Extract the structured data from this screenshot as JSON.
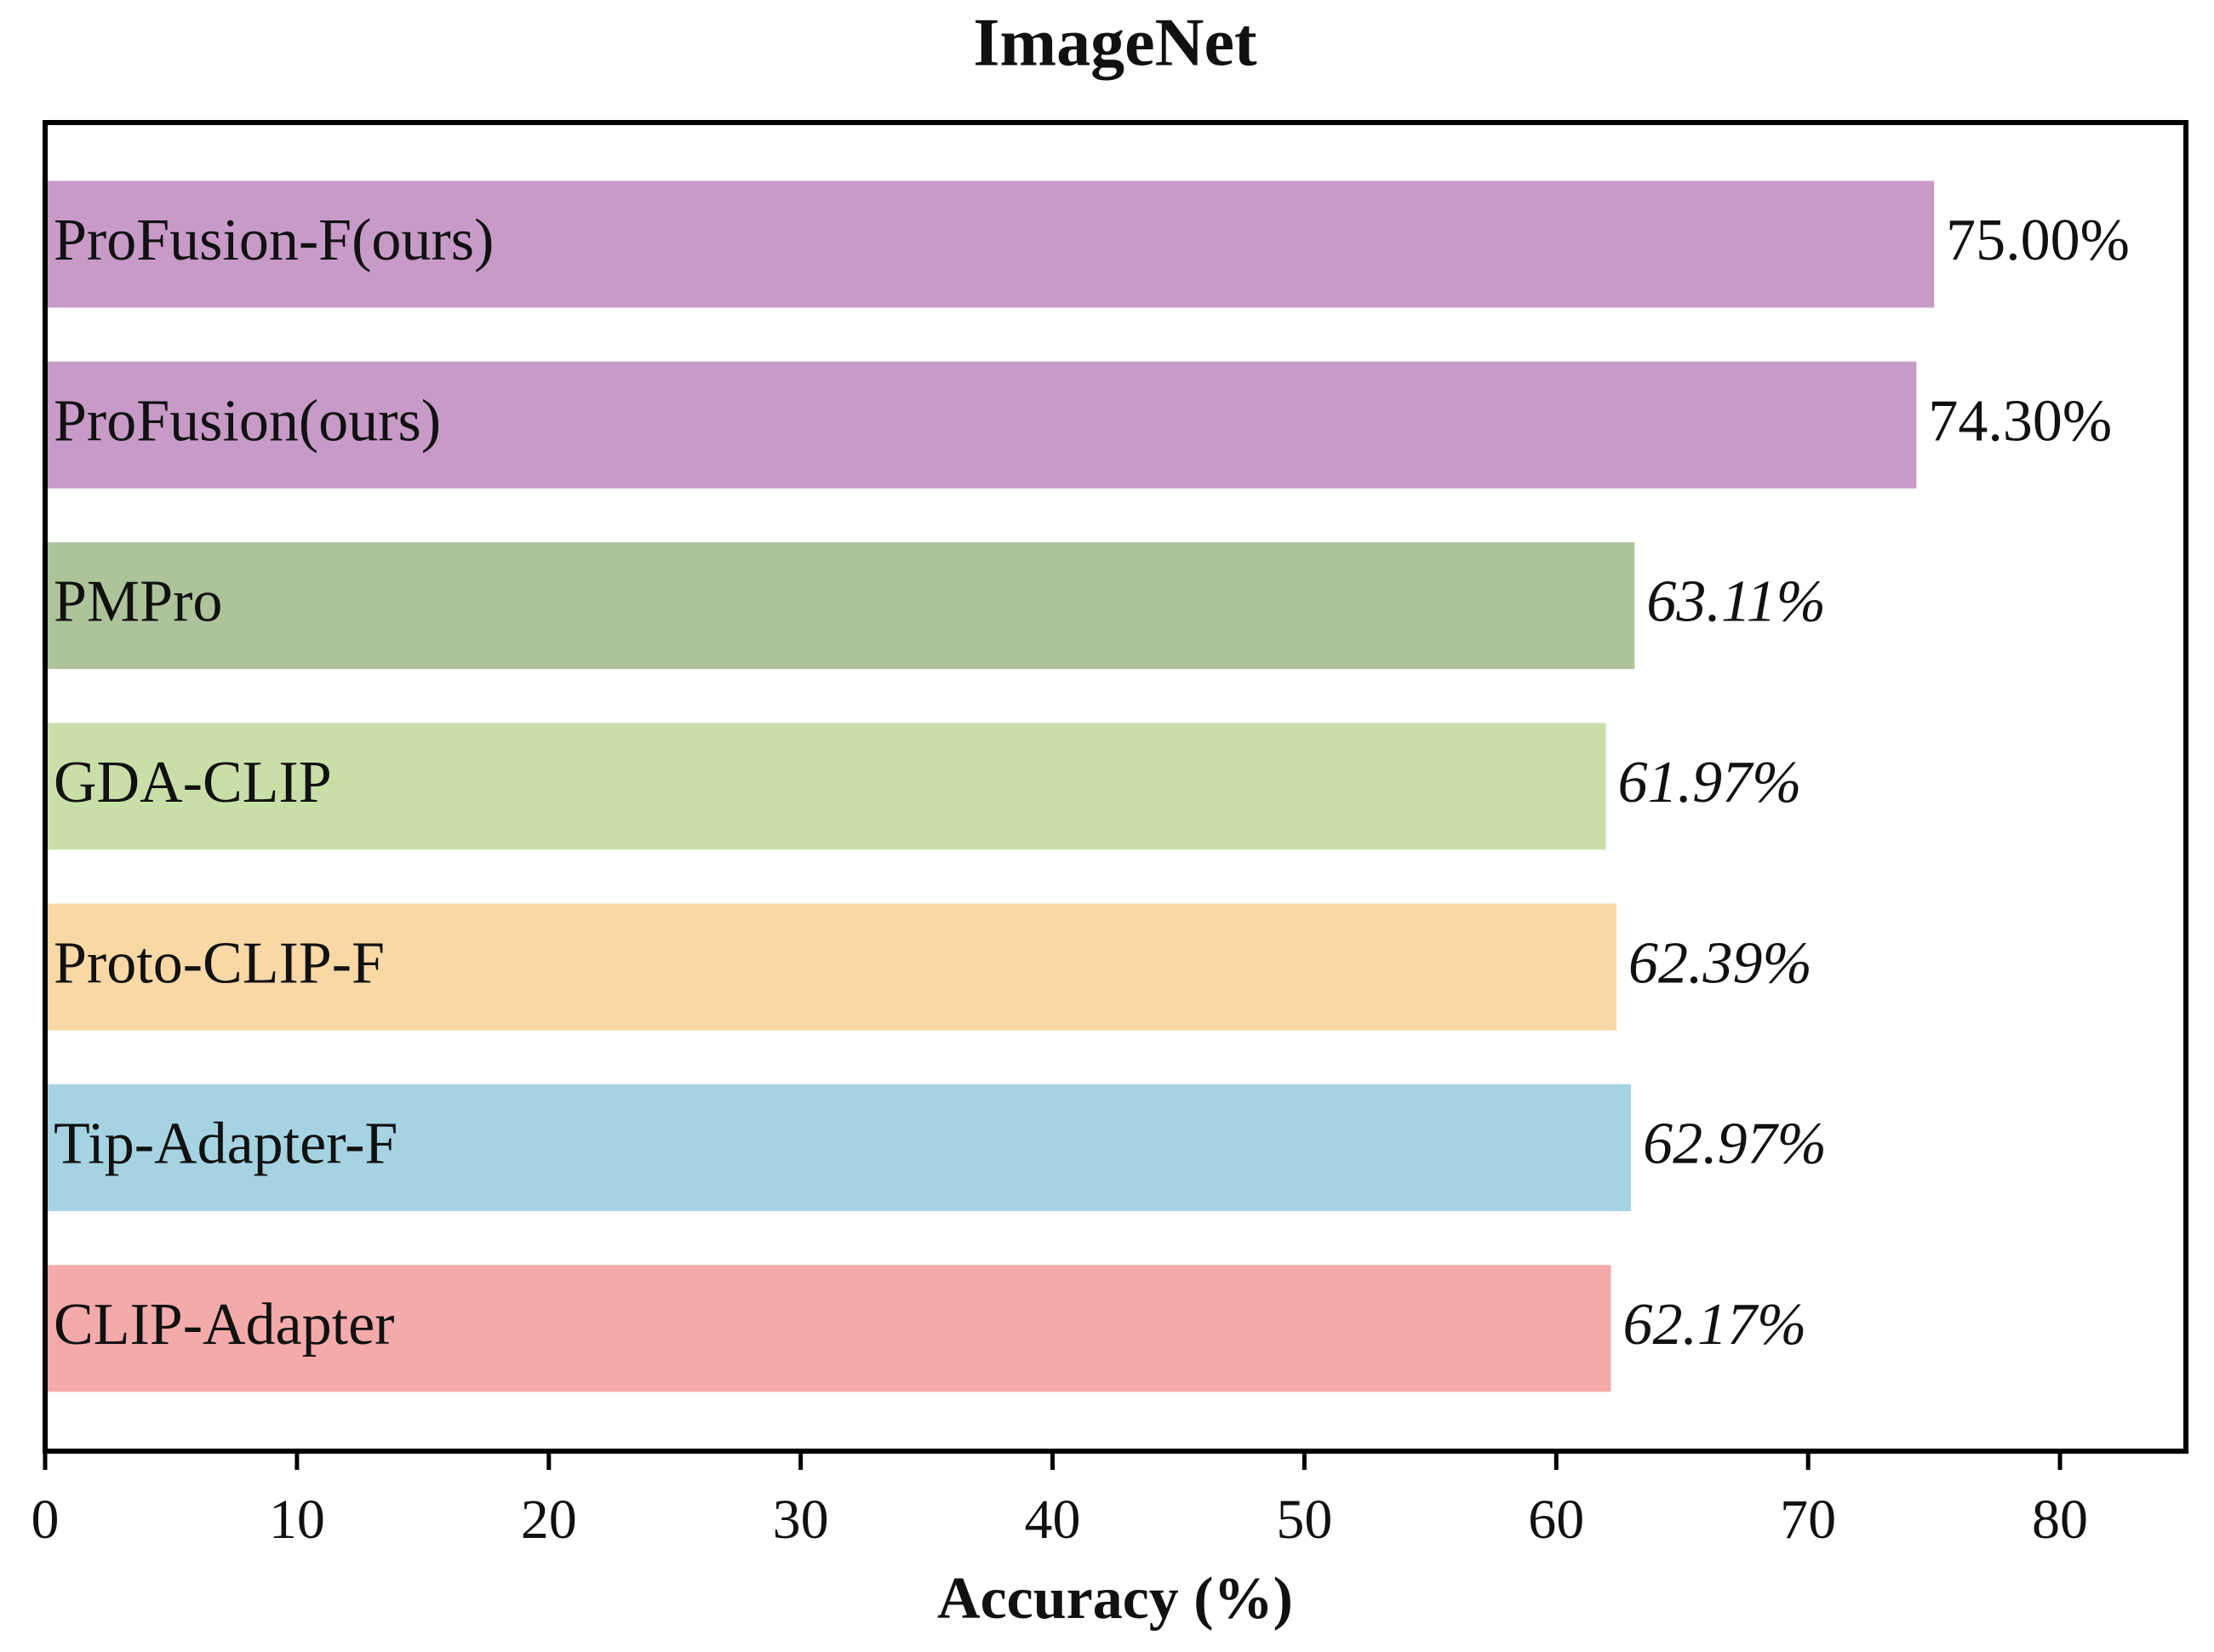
{
  "chart_data": {
    "type": "barh",
    "title": "ImageNet",
    "xlabel": "Accuracy (%)",
    "categories": [
      "ProFusion-F(ours)",
      "ProFusion(ours)",
      "PMPro",
      "GDA-CLIP",
      "Proto-CLIP-F",
      "Tip-Adapter-F",
      "CLIP-Adapter"
    ],
    "values": [
      75.0,
      74.3,
      63.11,
      61.97,
      62.39,
      62.97,
      62.17
    ],
    "value_labels": [
      "75.00%",
      "74.30%",
      "63.11%",
      "61.97%",
      "62.39%",
      "62.97%",
      "62.17%"
    ],
    "value_label_italic": [
      false,
      false,
      true,
      true,
      true,
      true,
      true
    ],
    "colors": [
      "#c79ac8",
      "#c79ac8",
      "#adc49a",
      "#c8e0a7",
      "#f9d8a6",
      "#a5d3e2",
      "#f4aaaa"
    ],
    "xlim": [
      0,
      85
    ],
    "xticks": [
      0,
      10,
      20,
      30,
      40,
      50,
      60,
      70,
      80
    ]
  }
}
